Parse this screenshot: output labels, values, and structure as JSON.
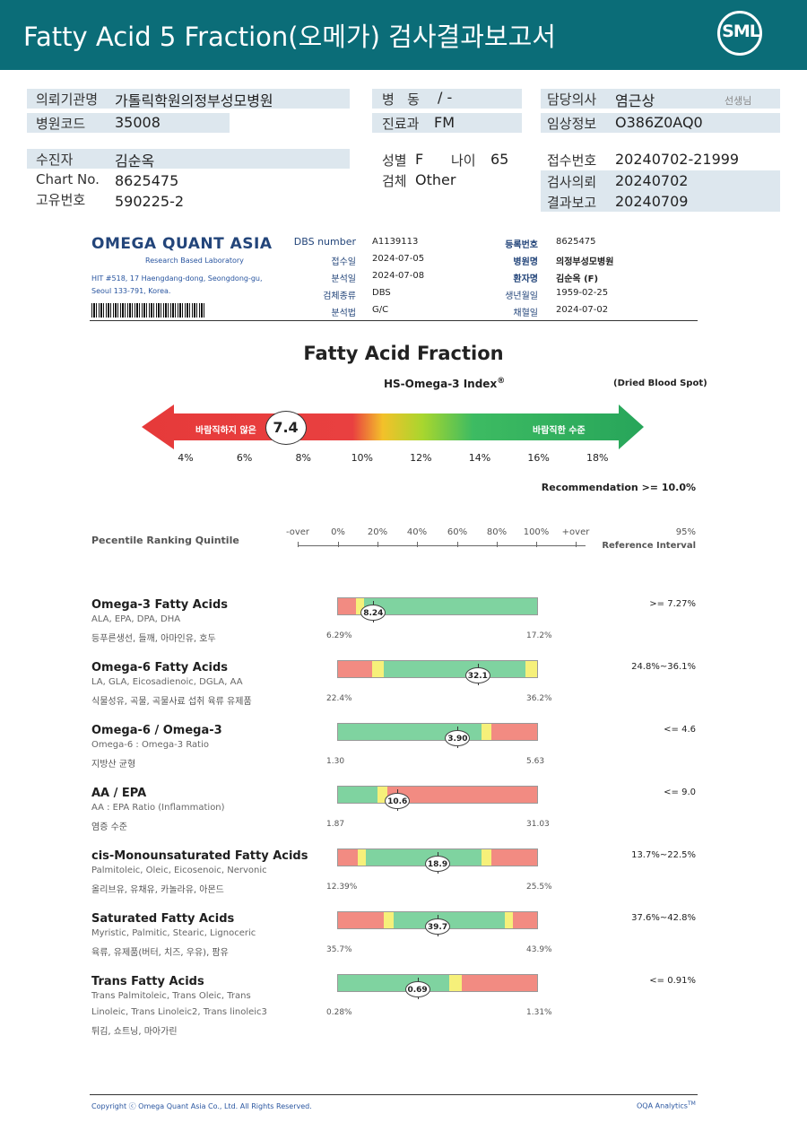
{
  "header": {
    "title": "Fatty Acid 5 Fraction(오메가) 검사결과보고서",
    "logo_text": "SML"
  },
  "info": {
    "institution_label": "의뢰기관명",
    "institution": "가톨릭학원의정부성모병원",
    "hospital_code_label": "병원코드",
    "hospital_code": "35008",
    "ward_label": "병   동",
    "ward": "/ -",
    "dept_label": "진료과",
    "dept": "FM",
    "doctor_label": "담당의사",
    "doctor": "염근상",
    "doctor_suffix": "선생님",
    "clinical_label": "임상정보",
    "clinical": "O386Z0AQ0",
    "patient_label": "수진자",
    "patient": "김순옥",
    "chart_label": "Chart No.",
    "chart": "8625475",
    "unique_label": "고유번호",
    "unique": "590225-2",
    "sex_label": "성별",
    "sex": "F",
    "age_label": "나이",
    "age": "65",
    "specimen_label": "검체",
    "specimen": "Other",
    "receipt_label": "접수번호",
    "receipt": "20240702-21999",
    "requested_label": "검사의뢰",
    "requested": "20240702",
    "reported_label": "결과보고",
    "reported": "20240709"
  },
  "lab": {
    "name": "OMEGA QUANT ASIA",
    "sub": "Research Based Laboratory",
    "address1": "HIT #518, 17 Haengdang-dong, Seongdong-gu,",
    "address2": "Seoul 133-791, Korea.",
    "dbs_label": "DBS number",
    "dbs": "A1139113",
    "recv_label": "접수일",
    "recv": "2024-07-05",
    "anal_label": "분석일",
    "anal": "2024-07-08",
    "type_label": "검체종류",
    "type": "DBS",
    "method_label": "분석법",
    "method": "G/C",
    "reg_label": "등록번호",
    "reg": "8625475",
    "hosp_label": "병원명",
    "hosp": "의정부성모병원",
    "pat_label": "환자명",
    "pat": "김순옥 (F)",
    "dob_label": "생년월일",
    "dob": "1959-02-25",
    "draw_label": "채혈일",
    "draw": "2024-07-02"
  },
  "index": {
    "title": "Fatty Acid Fraction",
    "subtitle": "HS-Omega-3 Index",
    "sup": "®",
    "spot": "(Dried Blood Spot)",
    "bad_label": "바람직하지 않은",
    "good_label": "바람직한 수준",
    "value": "7.4",
    "value_num": 7.4,
    "ticks": [
      "4%",
      "6%",
      "8%",
      "10%",
      "12%",
      "14%",
      "16%",
      "18%"
    ],
    "recommendation": "Recommendation  >= 10.0%"
  },
  "scale": {
    "title": "Pecentile Ranking Quintile",
    "labels": [
      "-over",
      "0%",
      "20%",
      "40%",
      "60%",
      "80%",
      "100%",
      "+over"
    ],
    "ref1": "95%",
    "ref2": "Reference Interval"
  },
  "items": [
    {
      "title": "Omega-3 Fatty Acids",
      "sub1": "ALA, EPA, DPA, DHA",
      "sub2": "등푸른생선, 들깨, 아마인유, 호두",
      "min": "6.29%",
      "max": "17.2%",
      "value": "8.24",
      "pos": 0.18,
      "ref": ">= 7.27%",
      "segments": [
        {
          "w": 0.09,
          "c": "#f28b82"
        },
        {
          "w": 0.04,
          "c": "#f6f07a"
        },
        {
          "w": 0.87,
          "c": "#7fd3a0"
        }
      ]
    },
    {
      "title": "Omega-6 Fatty Acids",
      "sub1": "LA, GLA, Eicosadienoic, DGLA, AA",
      "sub2": "식물성유, 곡물, 곡물사료 섭취 육류 유제품",
      "min": "22.4%",
      "max": "36.2%",
      "value": "32.1",
      "pos": 0.7,
      "ref": "24.8%~36.1%",
      "segments": [
        {
          "w": 0.17,
          "c": "#f28b82"
        },
        {
          "w": 0.06,
          "c": "#f6f07a"
        },
        {
          "w": 0.71,
          "c": "#7fd3a0"
        },
        {
          "w": 0.06,
          "c": "#f6f07a"
        }
      ]
    },
    {
      "title": "Omega-6 / Omega-3",
      "sub1": "Omega-6 : Omega-3 Ratio",
      "sub2": "지방산 균형",
      "min": "1.30",
      "max": "5.63",
      "value": "3.90",
      "pos": 0.6,
      "ref": "<= 4.6",
      "segments": [
        {
          "w": 0.72,
          "c": "#7fd3a0"
        },
        {
          "w": 0.05,
          "c": "#f6f07a"
        },
        {
          "w": 0.23,
          "c": "#f28b82"
        }
      ]
    },
    {
      "title": "AA / EPA",
      "sub1": "AA : EPA Ratio (Inflammation)",
      "sub2": "염증 수준",
      "min": "1.87",
      "max": "31.03",
      "value": "10.6",
      "pos": 0.3,
      "ref": "<= 9.0",
      "segments": [
        {
          "w": 0.2,
          "c": "#7fd3a0"
        },
        {
          "w": 0.05,
          "c": "#f6f07a"
        },
        {
          "w": 0.75,
          "c": "#f28b82"
        }
      ]
    },
    {
      "title": "cis-Monounsaturated Fatty Acids",
      "sub1": "Palmitoleic, Oleic, Eicosenoic, Nervonic",
      "sub2": "올리브유, 유채유, 카놀라유, 아몬드",
      "min": "12.39%",
      "max": "25.5%",
      "value": "18.9",
      "pos": 0.5,
      "ref": "13.7%~22.5%",
      "segments": [
        {
          "w": 0.1,
          "c": "#f28b82"
        },
        {
          "w": 0.04,
          "c": "#f6f07a"
        },
        {
          "w": 0.58,
          "c": "#7fd3a0"
        },
        {
          "w": 0.05,
          "c": "#f6f07a"
        },
        {
          "w": 0.23,
          "c": "#f28b82"
        }
      ]
    },
    {
      "title": "Saturated Fatty Acids",
      "sub1": "Myristic, Palmitic, Stearic, Lignoceric",
      "sub2": "육류, 유제품(버터, 치즈, 우유), 팜유",
      "min": "35.7%",
      "max": "43.9%",
      "value": "39.7",
      "pos": 0.5,
      "ref": "37.6%~42.8%",
      "segments": [
        {
          "w": 0.23,
          "c": "#f28b82"
        },
        {
          "w": 0.05,
          "c": "#f6f07a"
        },
        {
          "w": 0.56,
          "c": "#7fd3a0"
        },
        {
          "w": 0.04,
          "c": "#f6f07a"
        },
        {
          "w": 0.12,
          "c": "#f28b82"
        }
      ]
    },
    {
      "title": "Trans Fatty Acids",
      "sub1": "Trans Palmitoleic, Trans Oleic, Trans",
      "sub1b": "Linoleic, Trans Linoleic2, Trans linoleic3",
      "sub2": "튀김, 쇼트닝, 마아가린",
      "min": "0.28%",
      "max": "1.31%",
      "value": "0.69",
      "pos": 0.4,
      "ref": "<= 0.91%",
      "segments": [
        {
          "w": 0.56,
          "c": "#7fd3a0"
        },
        {
          "w": 0.06,
          "c": "#f6f07a"
        },
        {
          "w": 0.38,
          "c": "#f28b82"
        }
      ]
    }
  ],
  "footer": {
    "copyright": "Copyright ⓒ Omega Quant Asia Co., Ltd.  All Rights Reserved.",
    "analytics": "OQA Analytics",
    "tm": "TM"
  },
  "colors": {
    "header": "#0b6d78",
    "band": "#dde7ee",
    "red": "#f28b82",
    "yellow": "#f6f07a",
    "green": "#7fd3a0"
  }
}
